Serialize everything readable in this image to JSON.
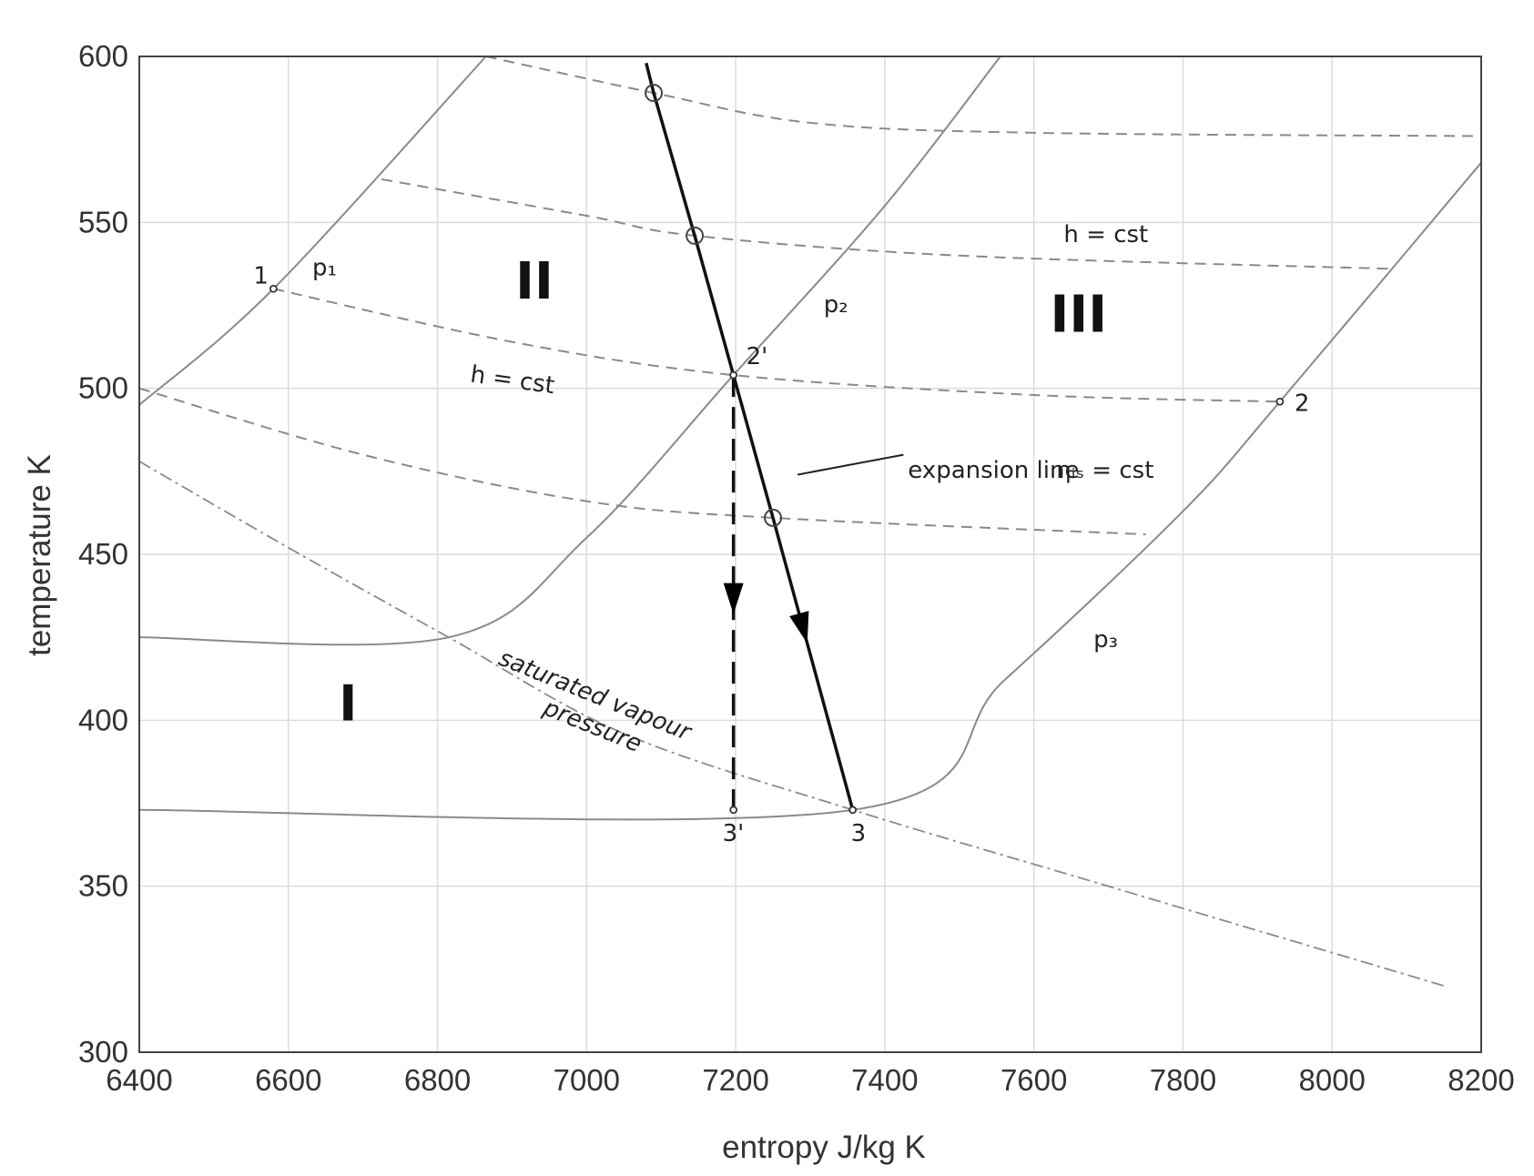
{
  "chart_data": {
    "type": "line",
    "xlabel": "entropy J/kg K",
    "ylabel": "temperature K",
    "xlim": [
      6400,
      8200
    ],
    "ylim": [
      300,
      600
    ],
    "grid": true,
    "xticks": [
      6400,
      6600,
      6800,
      7000,
      7200,
      7400,
      7600,
      7800,
      8000,
      8200
    ],
    "yticks": [
      300,
      350,
      400,
      450,
      500,
      550,
      600
    ],
    "xtick_labels": [
      "6400",
      "6600",
      "6800",
      "7000",
      "7200",
      "7400",
      "7600",
      "7800",
      "8000",
      "8200"
    ],
    "ytick_labels": [
      "300",
      "350",
      "400",
      "450",
      "500",
      "550",
      "600"
    ],
    "isobars": [
      {
        "label": "p₁",
        "points": [
          [
            6400,
            495
          ],
          [
            6580,
            530
          ],
          [
            6865,
            600
          ]
        ]
      },
      {
        "label": "p₂",
        "points": [
          [
            6400,
            425
          ],
          [
            6815,
            425
          ],
          [
            7000,
            455
          ],
          [
            7197,
            504
          ],
          [
            7400,
            555
          ],
          [
            7555,
            600
          ]
        ]
      },
      {
        "label": "p₃",
        "points": [
          [
            6400,
            373
          ],
          [
            7357,
            373
          ],
          [
            7560,
            412
          ],
          [
            7800,
            463
          ],
          [
            7930,
            496
          ],
          [
            8200,
            568
          ]
        ]
      }
    ],
    "isenthalps": [
      {
        "label": "h = cst",
        "points": [
          [
            6865,
            600
          ],
          [
            7090,
            589
          ],
          [
            7300,
            580
          ],
          [
            7600,
            577
          ],
          [
            8200,
            576
          ]
        ]
      },
      {
        "label": "h = cst",
        "points": [
          [
            6725,
            563
          ],
          [
            7000,
            552
          ],
          [
            7145,
            546
          ],
          [
            7500,
            540
          ],
          [
            8080,
            536
          ]
        ]
      },
      {
        "label": "h = cst",
        "points": [
          [
            6580,
            530
          ],
          [
            6900,
            514
          ],
          [
            7197,
            504
          ],
          [
            7600,
            498
          ],
          [
            7930,
            496
          ]
        ]
      },
      {
        "label": "",
        "points": [
          [
            6400,
            500
          ],
          [
            6700,
            480
          ],
          [
            7000,
            466
          ],
          [
            7250,
            461
          ],
          [
            7750,
            456
          ]
        ]
      }
    ],
    "saturated_vapour_pressure": {
      "label": "saturated vapour\npressure",
      "points": [
        [
          6400,
          478
        ],
        [
          6600,
          452
        ],
        [
          6815,
          425
        ],
        [
          7050,
          396
        ],
        [
          7357,
          373
        ],
        [
          7700,
          350
        ],
        [
          8150,
          320
        ]
      ]
    },
    "expansion_line": {
      "label": "expansion line  ηᵢₛ = cst",
      "points": [
        [
          7080,
          598
        ],
        [
          7090,
          589
        ],
        [
          7145,
          546
        ],
        [
          7197,
          504
        ],
        [
          7250,
          461
        ],
        [
          7357,
          373
        ]
      ]
    },
    "isentropic_line": {
      "points": [
        [
          7197,
          504
        ],
        [
          7197,
          373
        ]
      ]
    },
    "state_points": [
      {
        "label": "1",
        "x": 6580,
        "y": 530
      },
      {
        "label": "2",
        "x": 7930,
        "y": 496
      },
      {
        "label": "2'",
        "x": 7197,
        "y": 504
      },
      {
        "label": "3",
        "x": 7357,
        "y": 373
      },
      {
        "label": "3'",
        "x": 7197,
        "y": 373
      }
    ],
    "expansion_markers": [
      {
        "x": 7090,
        "y": 589
      },
      {
        "x": 7145,
        "y": 546
      },
      {
        "x": 7250,
        "y": 461
      }
    ],
    "regions": [
      {
        "label": "I",
        "x": 6680,
        "y": 400
      },
      {
        "label": "II",
        "x": 6930,
        "y": 527
      },
      {
        "label": "III",
        "x": 7660,
        "y": 517
      }
    ],
    "annotations": {
      "p1": "p₁",
      "p2": "p₂",
      "p3": "p₃",
      "h_cst_upper": "h = cst",
      "h_cst_lower": "h = cst",
      "expansion": "expansion line",
      "eta": "ηᵢₛ = cst",
      "sat1": "saturated vapour",
      "sat2": "pressure"
    }
  }
}
